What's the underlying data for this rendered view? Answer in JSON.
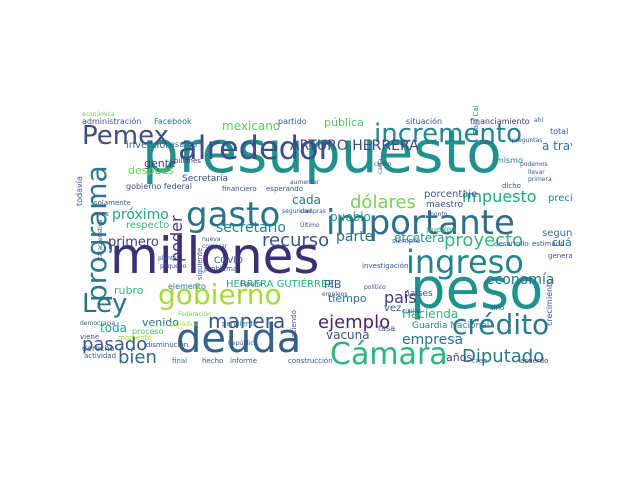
{
  "words": [
    {
      "text": "presupuesto",
      "color": "#21918c"
    },
    {
      "text": "millones",
      "color": "#3b2f7a"
    },
    {
      "text": "peso",
      "color": "#21918c"
    },
    {
      "text": "deuda",
      "color": "#33628d"
    },
    {
      "text": "importante",
      "color": "#2f6e8e"
    },
    {
      "text": "alrededor",
      "color": "#3d4e8a"
    },
    {
      "text": "gasto",
      "color": "#2c718e"
    },
    {
      "text": "gobierno",
      "color": "#a5db36"
    },
    {
      "text": "ingreso",
      "color": "#25848e"
    },
    {
      "text": "Cámara",
      "color": "#2fb47c"
    },
    {
      "text": "incremento",
      "color": "#25848e"
    },
    {
      "text": "crédito",
      "color": "#2a778e"
    },
    {
      "text": "Pemex",
      "color": "#3e4c8a"
    },
    {
      "text": "programa",
      "color": "#2a788e"
    },
    {
      "text": "Ley",
      "color": "#2c728e"
    },
    {
      "text": "manera",
      "color": "#3b528b"
    },
    {
      "text": "ejemplo",
      "color": "#482374"
    },
    {
      "text": "dólares",
      "color": "#7ad151"
    },
    {
      "text": "proyecto",
      "color": "#35b779"
    },
    {
      "text": "recurso",
      "color": "#3b528b"
    },
    {
      "text": "Diputado",
      "color": "#2a788e"
    },
    {
      "text": "pasado",
      "color": "#38588c"
    },
    {
      "text": "bien",
      "color": "#31688e"
    },
    {
      "text": "país",
      "color": "#443983"
    },
    {
      "text": "impuesto",
      "color": "#21a685"
    },
    {
      "text": "poder",
      "color": "#46327e"
    },
    {
      "text": "economía",
      "color": "#2e6f8e"
    },
    {
      "text": "ARTURO HERRERA",
      "color": "#3f4889"
    },
    {
      "text": "parte",
      "color": "#2e6e8e"
    },
    {
      "text": "empresa",
      "color": "#2c728e"
    },
    {
      "text": "próximo",
      "color": "#22a884"
    },
    {
      "text": "secretario",
      "color": "#26828e"
    },
    {
      "text": "primero",
      "color": "#424086"
    },
    {
      "text": "etcétera",
      "color": "#21918c"
    },
    {
      "text": "Hacienda",
      "color": "#31b57b"
    },
    {
      "text": "pueblo",
      "color": "#1fa088"
    },
    {
      "text": "HERRERA GUTIÉRREZ",
      "color": "#26ad81"
    },
    {
      "text": "mexicano",
      "color": "#5ec962"
    },
    {
      "text": "a través",
      "color": "#297b8e"
    },
    {
      "text": "vacuna",
      "color": "#3b528b"
    },
    {
      "text": "después",
      "color": "#6ccd5a"
    },
    {
      "text": "gente",
      "color": "#433e85"
    },
    {
      "text": "cada",
      "color": "#2a788e"
    },
    {
      "text": "rubro",
      "color": "#31b57b"
    },
    {
      "text": "venido",
      "color": "#2a768e"
    },
    {
      "text": "toda",
      "color": "#20a486"
    },
    {
      "text": "tiempo",
      "color": "#2d708e"
    },
    {
      "text": "años",
      "color": "#46337e"
    },
    {
      "text": "cuál",
      "color": "#2c728e"
    },
    {
      "text": "PIB",
      "color": "#38598c"
    },
    {
      "text": "Guardia Nacional",
      "color": "#26828e"
    },
    {
      "text": "pública",
      "color": "#54c568"
    },
    {
      "text": "inversión",
      "color": "#2d708e"
    },
    {
      "text": "porcentaje",
      "color": "#3b528b"
    },
    {
      "text": "Secretaría",
      "color": "#3e4989"
    },
    {
      "text": "maestro",
      "color": "#3a548c"
    },
    {
      "text": "segundo",
      "color": "#31688e"
    },
    {
      "text": "precio",
      "color": "#2a788e"
    },
    {
      "text": "COVID",
      "color": "#3b528b"
    },
    {
      "text": "respecto",
      "color": "#37b878"
    },
    {
      "text": "elemento",
      "color": "#2a788e"
    },
    {
      "text": "vez",
      "color": "#38598c"
    },
    {
      "text": "proceso",
      "color": "#52c569"
    },
    {
      "text": "países",
      "color": "#38598c"
    },
    {
      "text": "pueden",
      "color": "#3aba76"
    },
    {
      "text": "administración",
      "color": "#3b528b"
    },
    {
      "text": "Facebook",
      "color": "#2f6c8e"
    },
    {
      "text": "partido",
      "color": "#35608d"
    },
    {
      "text": "situación",
      "color": "#3b528b"
    },
    {
      "text": "financiamiento",
      "color": "#46307e"
    },
    {
      "text": "total",
      "color": "#3b528b"
    },
    {
      "text": "mismo",
      "color": "#2a788e"
    },
    {
      "text": "asunto",
      "color": "#2a788e"
    },
    {
      "text": "billones",
      "color": "#46337e"
    },
    {
      "text": "derecho",
      "color": "#3b528b"
    },
    {
      "text": "momento",
      "color": "#a0da39"
    },
    {
      "text": "final",
      "color": "#2a788e"
    },
    {
      "text": "hecho",
      "color": "#3b528b"
    },
    {
      "text": "informe",
      "color": "#3b528b"
    },
    {
      "text": "construcción",
      "color": "#3b528b"
    },
    {
      "text": "tasa",
      "color": "#3b528b"
    },
    {
      "text": "creo",
      "color": "#2a788e"
    },
    {
      "text": "acuerdo",
      "color": "#46337e"
    },
    {
      "text": "crecimiento",
      "color": "#3b528b"
    },
    {
      "text": "gobierno federal",
      "color": "#3b528b"
    },
    {
      "text": "solamente",
      "color": "#3b528b"
    },
    {
      "text": "viene",
      "color": "#3b528b"
    },
    {
      "text": "disminución",
      "color": "#3b528b"
    },
    {
      "text": "actividad",
      "color": "#3b528b"
    },
    {
      "text": "pendiente",
      "color": "#2a788e"
    },
    {
      "text": "haciendo",
      "color": "#3b528b"
    },
    {
      "text": "financiero",
      "color": "#3b528b"
    },
    {
      "text": "esperando",
      "color": "#3b528b"
    },
    {
      "text": "problema",
      "color": "#3b528b"
    },
    {
      "text": "siguiente",
      "color": "#3b528b"
    },
    {
      "text": "investigación",
      "color": "#3b528b"
    },
    {
      "text": "siempre",
      "color": "#3b528b"
    },
    {
      "text": "desarrollo",
      "color": "#3b528b"
    },
    {
      "text": "estimado",
      "color": "#3b528b"
    },
    {
      "text": "dicho",
      "color": "#3b528b"
    },
    {
      "text": "podemos",
      "color": "#3b528b"
    },
    {
      "text": "llevar",
      "color": "#3b528b"
    },
    {
      "text": "primera",
      "color": "#3b528b"
    },
    {
      "text": "general",
      "color": "#3b528b"
    },
    {
      "text": "todavía",
      "color": "#3b528b"
    },
    {
      "text": "Baja California",
      "color": "#2a788e"
    },
    {
      "text": "caso",
      "color": "#3b528b"
    },
    {
      "text": "mes",
      "color": "#3b528b"
    },
    {
      "text": "sino",
      "color": "#3b528b"
    },
    {
      "text": "preguntas",
      "color": "#3b528b"
    },
    {
      "text": "Federación",
      "color": "#6ccd5a"
    },
    {
      "text": "seguridad",
      "color": "#3b528b"
    },
    {
      "text": "nueva",
      "color": "#3b528b"
    },
    {
      "text": "comprar",
      "color": "#3b528b"
    },
    {
      "text": "compras",
      "color": "#3b528b"
    },
    {
      "text": "Último",
      "color": "#3b528b"
    },
    {
      "text": "aumentar",
      "color": "#3b528b"
    },
    {
      "text": "monto",
      "color": "#3b528b"
    },
    {
      "text": "cierto",
      "color": "#3b528b"
    },
    {
      "text": "carta",
      "color": "#3b528b"
    },
    {
      "text": "cuales",
      "color": "#3b528b"
    },
    {
      "text": "político",
      "color": "#3b528b"
    },
    {
      "text": "empleos",
      "color": "#3b528b"
    },
    {
      "text": "República",
      "color": "#3b528b"
    },
    {
      "text": "España",
      "color": "#3b528b"
    },
    {
      "text": "democracia",
      "color": "#3b528b"
    },
    {
      "text": "característica",
      "color": "#3b528b"
    },
    {
      "text": "pequeño",
      "color": "#3b528b"
    },
    {
      "text": "planta",
      "color": "#3b528b"
    },
    {
      "text": "periódico",
      "color": "#a0da39"
    },
    {
      "text": "ahí",
      "color": "#3b528b"
    },
    {
      "text": "económica",
      "color": "#6ccd5a"
    }
  ]
}
